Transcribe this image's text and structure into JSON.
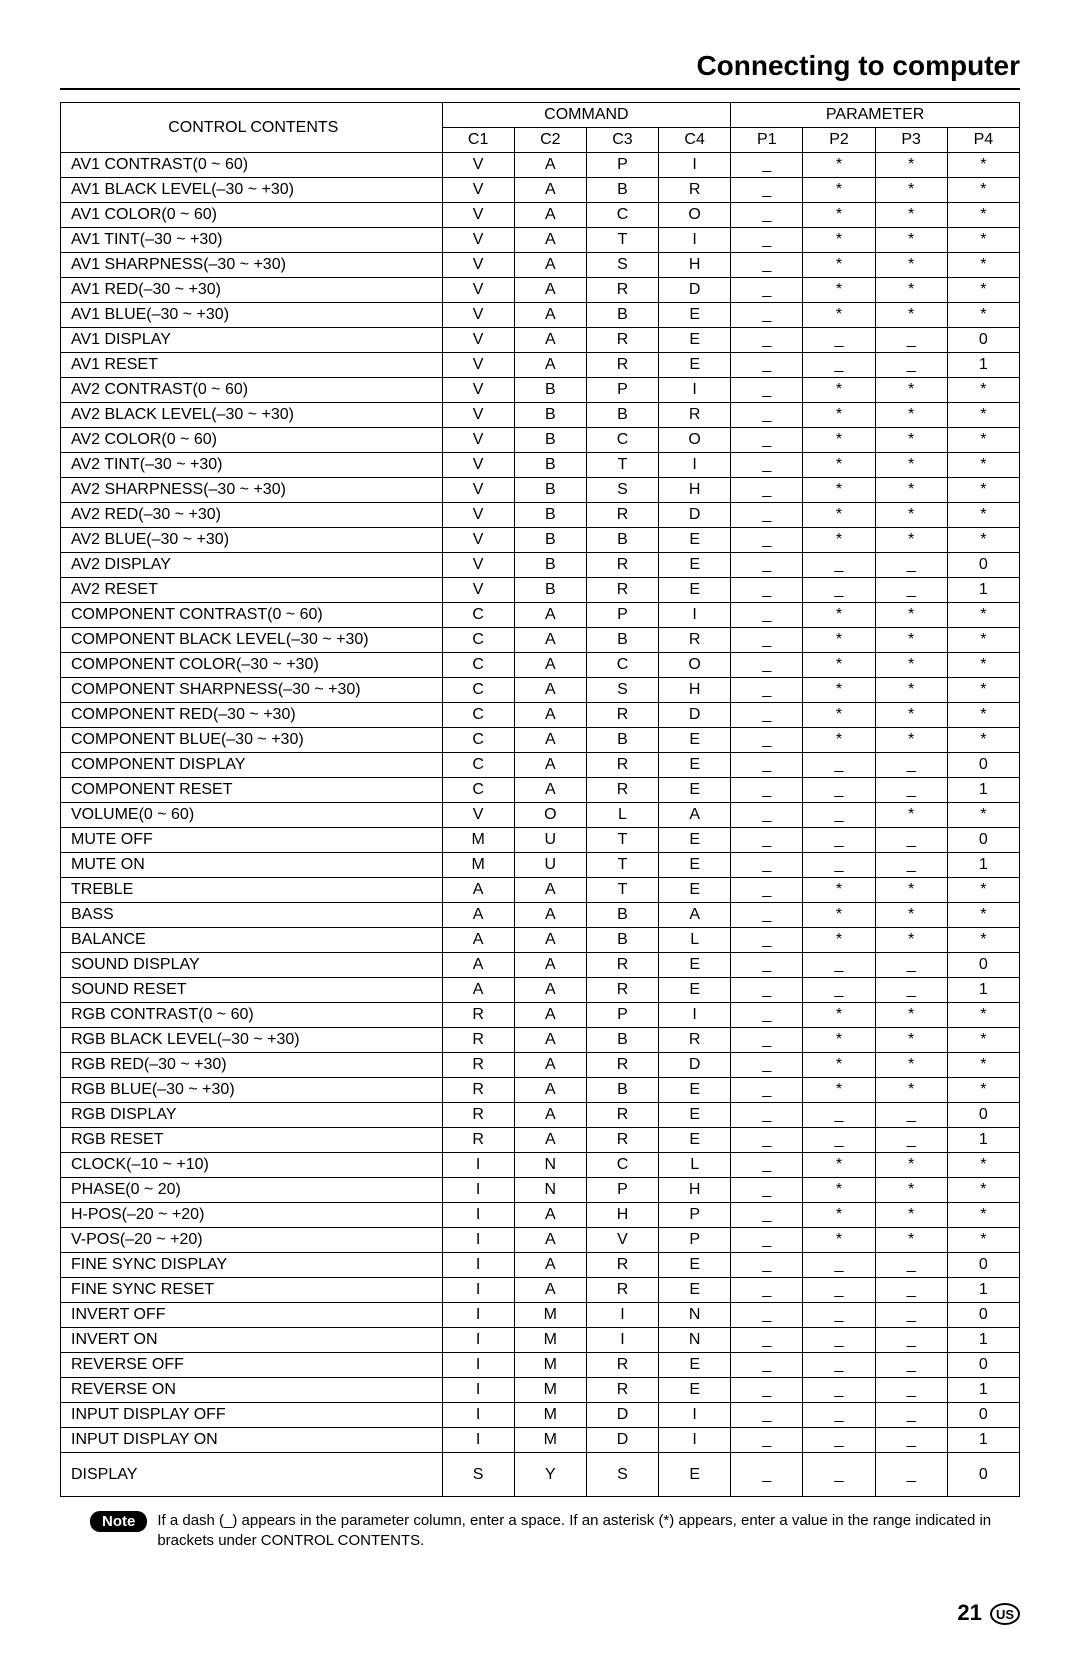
{
  "page_title": "Connecting to computer",
  "headers": {
    "contents": "CONTROL CONTENTS",
    "command": "COMMAND",
    "parameter": "PARAMETER",
    "cols": [
      "C1",
      "C2",
      "C3",
      "C4",
      "P1",
      "P2",
      "P3",
      "P4"
    ]
  },
  "rows": [
    {
      "label": "AV1 CONTRAST(0 ~ 60)",
      "c": [
        "V",
        "A",
        "P",
        "I"
      ],
      "p": [
        "_",
        "*",
        "*",
        "*"
      ]
    },
    {
      "label": "AV1 BLACK LEVEL(–30 ~ +30)",
      "c": [
        "V",
        "A",
        "B",
        "R"
      ],
      "p": [
        "_",
        "*",
        "*",
        "*"
      ]
    },
    {
      "label": "AV1 COLOR(0 ~ 60)",
      "c": [
        "V",
        "A",
        "C",
        "O"
      ],
      "p": [
        "_",
        "*",
        "*",
        "*"
      ]
    },
    {
      "label": "AV1 TINT(–30 ~ +30)",
      "c": [
        "V",
        "A",
        "T",
        "I"
      ],
      "p": [
        "_",
        "*",
        "*",
        "*"
      ]
    },
    {
      "label": "AV1 SHARPNESS(–30 ~ +30)",
      "c": [
        "V",
        "A",
        "S",
        "H"
      ],
      "p": [
        "_",
        "*",
        "*",
        "*"
      ]
    },
    {
      "label": "AV1 RED(–30 ~ +30)",
      "c": [
        "V",
        "A",
        "R",
        "D"
      ],
      "p": [
        "_",
        "*",
        "*",
        "*"
      ]
    },
    {
      "label": "AV1 BLUE(–30 ~ +30)",
      "c": [
        "V",
        "A",
        "B",
        "E"
      ],
      "p": [
        "_",
        "*",
        "*",
        "*"
      ]
    },
    {
      "label": "AV1 DISPLAY",
      "c": [
        "V",
        "A",
        "R",
        "E"
      ],
      "p": [
        "_",
        "_",
        "_",
        "0"
      ]
    },
    {
      "label": "AV1 RESET",
      "c": [
        "V",
        "A",
        "R",
        "E"
      ],
      "p": [
        "_",
        "_",
        "_",
        "1"
      ]
    },
    {
      "label": "AV2 CONTRAST(0 ~ 60)",
      "c": [
        "V",
        "B",
        "P",
        "I"
      ],
      "p": [
        "_",
        "*",
        "*",
        "*"
      ]
    },
    {
      "label": "AV2 BLACK LEVEL(–30 ~ +30)",
      "c": [
        "V",
        "B",
        "B",
        "R"
      ],
      "p": [
        "_",
        "*",
        "*",
        "*"
      ]
    },
    {
      "label": "AV2 COLOR(0 ~ 60)",
      "c": [
        "V",
        "B",
        "C",
        "O"
      ],
      "p": [
        "_",
        "*",
        "*",
        "*"
      ]
    },
    {
      "label": "AV2 TINT(–30 ~ +30)",
      "c": [
        "V",
        "B",
        "T",
        "I"
      ],
      "p": [
        "_",
        "*",
        "*",
        "*"
      ]
    },
    {
      "label": "AV2 SHARPNESS(–30 ~ +30)",
      "c": [
        "V",
        "B",
        "S",
        "H"
      ],
      "p": [
        "_",
        "*",
        "*",
        "*"
      ]
    },
    {
      "label": "AV2 RED(–30 ~ +30)",
      "c": [
        "V",
        "B",
        "R",
        "D"
      ],
      "p": [
        "_",
        "*",
        "*",
        "*"
      ]
    },
    {
      "label": "AV2 BLUE(–30 ~ +30)",
      "c": [
        "V",
        "B",
        "B",
        "E"
      ],
      "p": [
        "_",
        "*",
        "*",
        "*"
      ]
    },
    {
      "label": "AV2 DISPLAY",
      "c": [
        "V",
        "B",
        "R",
        "E"
      ],
      "p": [
        "_",
        "_",
        "_",
        "0"
      ]
    },
    {
      "label": "AV2 RESET",
      "c": [
        "V",
        "B",
        "R",
        "E"
      ],
      "p": [
        "_",
        "_",
        "_",
        "1"
      ]
    },
    {
      "label": "COMPONENT CONTRAST(0 ~ 60)",
      "c": [
        "C",
        "A",
        "P",
        "I"
      ],
      "p": [
        "_",
        "*",
        "*",
        "*"
      ]
    },
    {
      "label": "COMPONENT BLACK LEVEL(–30 ~ +30)",
      "c": [
        "C",
        "A",
        "B",
        "R"
      ],
      "p": [
        "_",
        "*",
        "*",
        "*"
      ]
    },
    {
      "label": "COMPONENT COLOR(–30 ~ +30)",
      "c": [
        "C",
        "A",
        "C",
        "O"
      ],
      "p": [
        "_",
        "*",
        "*",
        "*"
      ]
    },
    {
      "label": "COMPONENT SHARPNESS(–30 ~ +30)",
      "c": [
        "C",
        "A",
        "S",
        "H"
      ],
      "p": [
        "_",
        "*",
        "*",
        "*"
      ]
    },
    {
      "label": "COMPONENT RED(–30 ~ +30)",
      "c": [
        "C",
        "A",
        "R",
        "D"
      ],
      "p": [
        "_",
        "*",
        "*",
        "*"
      ]
    },
    {
      "label": "COMPONENT BLUE(–30 ~ +30)",
      "c": [
        "C",
        "A",
        "B",
        "E"
      ],
      "p": [
        "_",
        "*",
        "*",
        "*"
      ]
    },
    {
      "label": "COMPONENT DISPLAY",
      "c": [
        "C",
        "A",
        "R",
        "E"
      ],
      "p": [
        "_",
        "_",
        "_",
        "0"
      ]
    },
    {
      "label": "COMPONENT RESET",
      "c": [
        "C",
        "A",
        "R",
        "E"
      ],
      "p": [
        "_",
        "_",
        "_",
        "1"
      ]
    },
    {
      "label": "VOLUME(0 ~ 60)",
      "c": [
        "V",
        "O",
        "L",
        "A"
      ],
      "p": [
        "_",
        "_",
        "*",
        "*"
      ]
    },
    {
      "label": "MUTE OFF",
      "c": [
        "M",
        "U",
        "T",
        "E"
      ],
      "p": [
        "_",
        "_",
        "_",
        "0"
      ]
    },
    {
      "label": "MUTE ON",
      "c": [
        "M",
        "U",
        "T",
        "E"
      ],
      "p": [
        "_",
        "_",
        "_",
        "1"
      ]
    },
    {
      "label": "TREBLE",
      "c": [
        "A",
        "A",
        "T",
        "E"
      ],
      "p": [
        "_",
        "*",
        "*",
        "*"
      ]
    },
    {
      "label": "BASS",
      "c": [
        "A",
        "A",
        "B",
        "A"
      ],
      "p": [
        "_",
        "*",
        "*",
        "*"
      ]
    },
    {
      "label": "BALANCE",
      "c": [
        "A",
        "A",
        "B",
        "L"
      ],
      "p": [
        "_",
        "*",
        "*",
        "*"
      ]
    },
    {
      "label": "SOUND DISPLAY",
      "c": [
        "A",
        "A",
        "R",
        "E"
      ],
      "p": [
        "_",
        "_",
        "_",
        "0"
      ]
    },
    {
      "label": "SOUND RESET",
      "c": [
        "A",
        "A",
        "R",
        "E"
      ],
      "p": [
        "_",
        "_",
        "_",
        "1"
      ]
    },
    {
      "label": "RGB CONTRAST(0 ~ 60)",
      "c": [
        "R",
        "A",
        "P",
        "I"
      ],
      "p": [
        "_",
        "*",
        "*",
        "*"
      ]
    },
    {
      "label": "RGB BLACK LEVEL(–30 ~ +30)",
      "c": [
        "R",
        "A",
        "B",
        "R"
      ],
      "p": [
        "_",
        "*",
        "*",
        "*"
      ]
    },
    {
      "label": "RGB RED(–30 ~ +30)",
      "c": [
        "R",
        "A",
        "R",
        "D"
      ],
      "p": [
        "_",
        "*",
        "*",
        "*"
      ]
    },
    {
      "label": "RGB BLUE(–30 ~ +30)",
      "c": [
        "R",
        "A",
        "B",
        "E"
      ],
      "p": [
        "_",
        "*",
        "*",
        "*"
      ]
    },
    {
      "label": "RGB DISPLAY",
      "c": [
        "R",
        "A",
        "R",
        "E"
      ],
      "p": [
        "_",
        "_",
        "_",
        "0"
      ]
    },
    {
      "label": "RGB RESET",
      "c": [
        "R",
        "A",
        "R",
        "E"
      ],
      "p": [
        "_",
        "_",
        "_",
        "1"
      ]
    },
    {
      "label": "CLOCK(–10 ~ +10)",
      "c": [
        "I",
        "N",
        "C",
        "L"
      ],
      "p": [
        "_",
        "*",
        "*",
        "*"
      ]
    },
    {
      "label": "PHASE(0 ~ 20)",
      "c": [
        "I",
        "N",
        "P",
        "H"
      ],
      "p": [
        "_",
        "*",
        "*",
        "*"
      ]
    },
    {
      "label": "H-POS(–20 ~ +20)",
      "c": [
        "I",
        "A",
        "H",
        "P"
      ],
      "p": [
        "_",
        "*",
        "*",
        "*"
      ]
    },
    {
      "label": "V-POS(–20 ~ +20)",
      "c": [
        "I",
        "A",
        "V",
        "P"
      ],
      "p": [
        "_",
        "*",
        "*",
        "*"
      ]
    },
    {
      "label": "FINE SYNC DISPLAY",
      "c": [
        "I",
        "A",
        "R",
        "E"
      ],
      "p": [
        "_",
        "_",
        "_",
        "0"
      ]
    },
    {
      "label": "FINE SYNC RESET",
      "c": [
        "I",
        "A",
        "R",
        "E"
      ],
      "p": [
        "_",
        "_",
        "_",
        "1"
      ]
    },
    {
      "label": "INVERT OFF",
      "c": [
        "I",
        "M",
        "I",
        "N"
      ],
      "p": [
        "_",
        "_",
        "_",
        "0"
      ]
    },
    {
      "label": "INVERT ON",
      "c": [
        "I",
        "M",
        "I",
        "N"
      ],
      "p": [
        "_",
        "_",
        "_",
        "1"
      ]
    },
    {
      "label": "REVERSE OFF",
      "c": [
        "I",
        "M",
        "R",
        "E"
      ],
      "p": [
        "_",
        "_",
        "_",
        "0"
      ]
    },
    {
      "label": "REVERSE ON",
      "c": [
        "I",
        "M",
        "R",
        "E"
      ],
      "p": [
        "_",
        "_",
        "_",
        "1"
      ]
    },
    {
      "label": "INPUT DISPLAY OFF",
      "c": [
        "I",
        "M",
        "D",
        "I"
      ],
      "p": [
        "_",
        "_",
        "_",
        "0"
      ]
    },
    {
      "label": "INPUT DISPLAY ON",
      "c": [
        "I",
        "M",
        "D",
        "I"
      ],
      "p": [
        "_",
        "_",
        "_",
        "1"
      ]
    },
    {
      "label": "DISPLAY",
      "c": [
        "S",
        "Y",
        "S",
        "E"
      ],
      "p": [
        "_",
        "_",
        "_",
        "0"
      ],
      "tall": true
    }
  ],
  "note_label": "Note",
  "note_text": "If a dash (_) appears in the parameter column, enter a space. If an asterisk (*) appears, enter a value in the range indicated in brackets under CONTROL CONTENTS.",
  "page_number": "21",
  "region": "US",
  "table_style": {
    "border_color": "#000000",
    "font_size_pt": 12,
    "col_widths_pct": [
      37,
      7,
      7,
      7,
      7,
      7,
      7,
      7,
      7
    ]
  }
}
